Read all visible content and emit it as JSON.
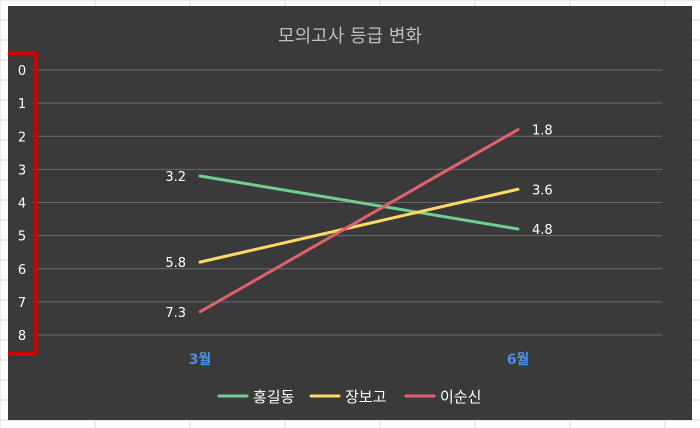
{
  "chart_data": {
    "type": "line",
    "title": "모의고사 등급 변화",
    "categories": [
      "3월",
      "6월"
    ],
    "y_axis": {
      "min": 0,
      "max": 8,
      "reversed": true,
      "ticks": [
        "0",
        "1",
        "2",
        "3",
        "4",
        "5",
        "6",
        "7",
        "8"
      ]
    },
    "series": [
      {
        "name": "홍길동",
        "values": [
          3.2,
          4.8
        ],
        "labels": [
          "3.2",
          "4.8"
        ],
        "color": "#6fcf8e"
      },
      {
        "name": "장보고",
        "values": [
          5.8,
          3.6
        ],
        "labels": [
          "5.8",
          "3.6"
        ],
        "color": "#ffd966"
      },
      {
        "name": "이순신",
        "values": [
          7.3,
          1.8
        ],
        "labels": [
          "7.3",
          "1.8"
        ],
        "color": "#e0606e"
      }
    ],
    "grid": true,
    "legend_position": "bottom",
    "colors": {
      "plot_background": "#3a3a3a",
      "gridline": "#6a6a6a",
      "axis_tick_text": "#ffffff",
      "category_text": "#4a90e2",
      "title_text": "#bfbfbf",
      "highlight_box": "#d40000"
    }
  }
}
